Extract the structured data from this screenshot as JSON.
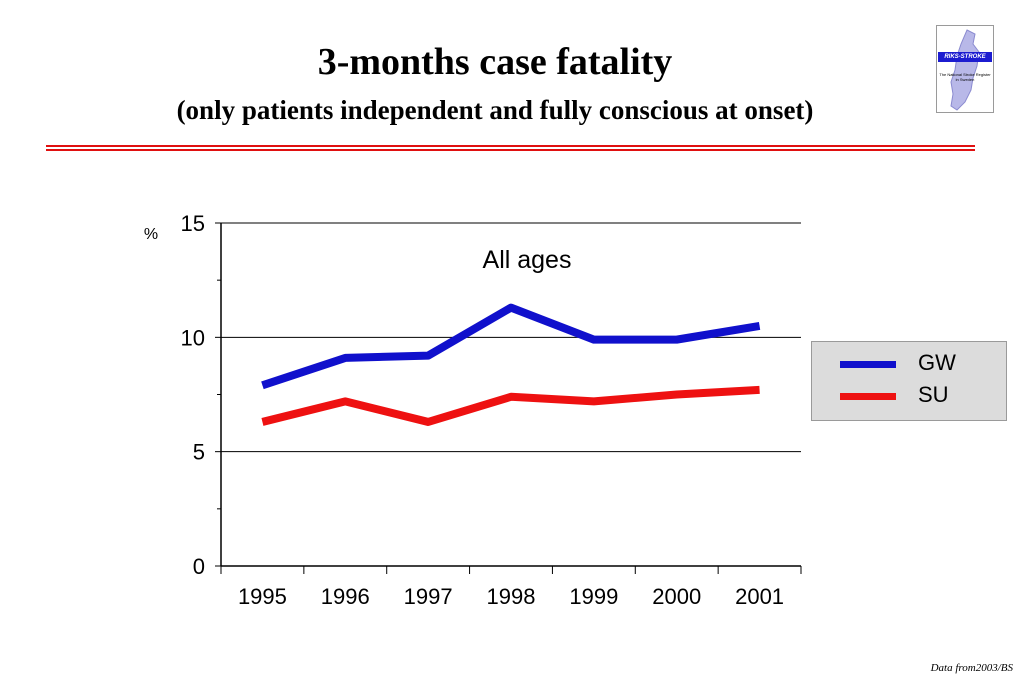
{
  "slide": {
    "title": "3-months case fatality",
    "subtitle": "(only patients independent and fully conscious at onset)",
    "source": "Data from2003/BS"
  },
  "logo": {
    "title": "RIKS-STROKE",
    "subtitle": "The National Stroke Register in Sweden"
  },
  "colors": {
    "GW": "#1010cc",
    "SU": "#ee1111",
    "rule": "#e01010",
    "legend_bg": "#dcdcdc"
  },
  "chart_data": {
    "type": "line",
    "title": "All ages",
    "ylabel": "%",
    "xlabel": "",
    "categories": [
      "1995",
      "1996",
      "1997",
      "1998",
      "1999",
      "2000",
      "2001"
    ],
    "yticks": [
      "0",
      "5",
      "10",
      "15"
    ],
    "ylim": [
      0,
      15
    ],
    "grid": true,
    "legend_position": "right",
    "series": [
      {
        "name": "GW",
        "color": "#1010cc",
        "values": [
          7.9,
          9.1,
          9.2,
          11.3,
          9.9,
          9.9,
          10.5
        ]
      },
      {
        "name": "SU",
        "color": "#ee1111",
        "values": [
          6.3,
          7.2,
          6.3,
          7.4,
          7.2,
          7.5,
          7.7
        ]
      }
    ]
  }
}
